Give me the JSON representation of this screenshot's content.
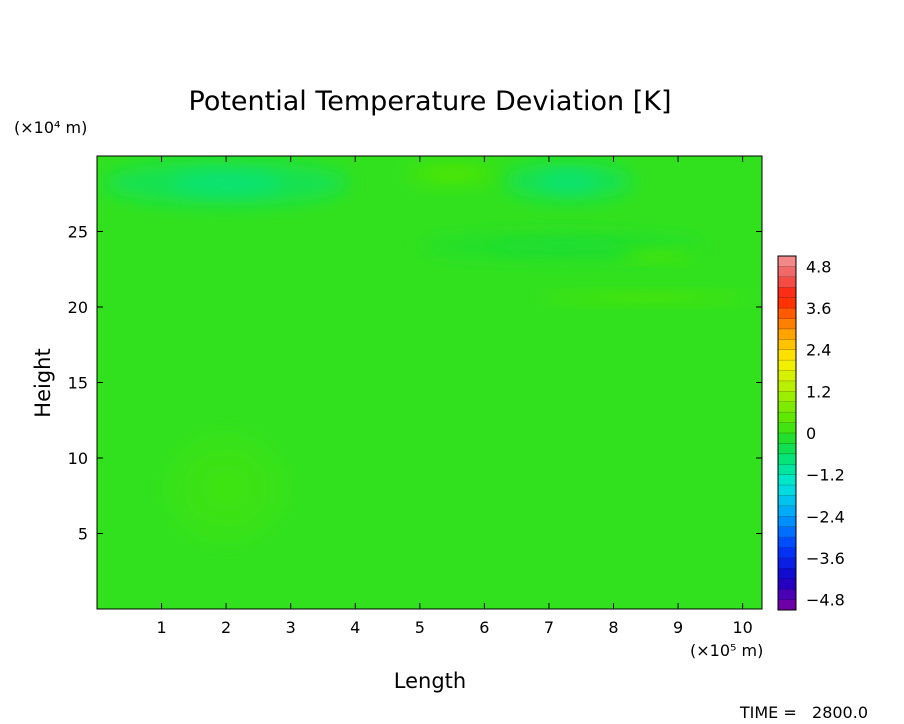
{
  "chart_data": {
    "type": "heatmap",
    "title": "Potential Temperature Deviation [K]",
    "xlabel": "Length",
    "ylabel": "Height",
    "x_unit": "(×10⁵ m)",
    "y_unit": "(×10⁴ m)",
    "xlim": [
      0,
      10.3
    ],
    "ylim": [
      0,
      30
    ],
    "xticks": [
      1,
      2,
      3,
      4,
      5,
      6,
      7,
      8,
      9,
      10
    ],
    "yticks": [
      5,
      10,
      15,
      20,
      25
    ],
    "background_value": 0,
    "anomalies": [
      {
        "x": 2.0,
        "y": 28.2,
        "sx": 1.9,
        "sy": 1.5,
        "value": -0.6
      },
      {
        "x": 7.3,
        "y": 28.3,
        "sx": 1.0,
        "sy": 1.3,
        "value": -0.6
      },
      {
        "x": 5.5,
        "y": 28.8,
        "sx": 0.7,
        "sy": 0.7,
        "value": 0.3
      },
      {
        "x": 7.2,
        "y": 24.0,
        "sx": 2.2,
        "sy": 0.9,
        "value": -0.2
      },
      {
        "x": 8.7,
        "y": 23.4,
        "sx": 0.6,
        "sy": 0.4,
        "value": 0.3
      },
      {
        "x": 8.5,
        "y": 20.6,
        "sx": 1.6,
        "sy": 0.35,
        "value": 0.3
      },
      {
        "x": 2.0,
        "y": 8.0,
        "sx": 0.9,
        "sy": 3.5,
        "value": 0.1
      }
    ],
    "colorbar": {
      "min": -5.1,
      "max": 5.1,
      "step": 0.3,
      "tick_values": [
        4.8,
        3.6,
        2.4,
        1.2,
        0,
        -1.2,
        -2.4,
        -3.6,
        -4.8
      ],
      "tick_labels": [
        "4.8",
        "3.6",
        "2.4",
        "1.2",
        "0",
        "−1.2",
        "−2.4",
        "−3.6",
        "−4.8"
      ]
    },
    "footer": "TIME =   2800.0"
  }
}
